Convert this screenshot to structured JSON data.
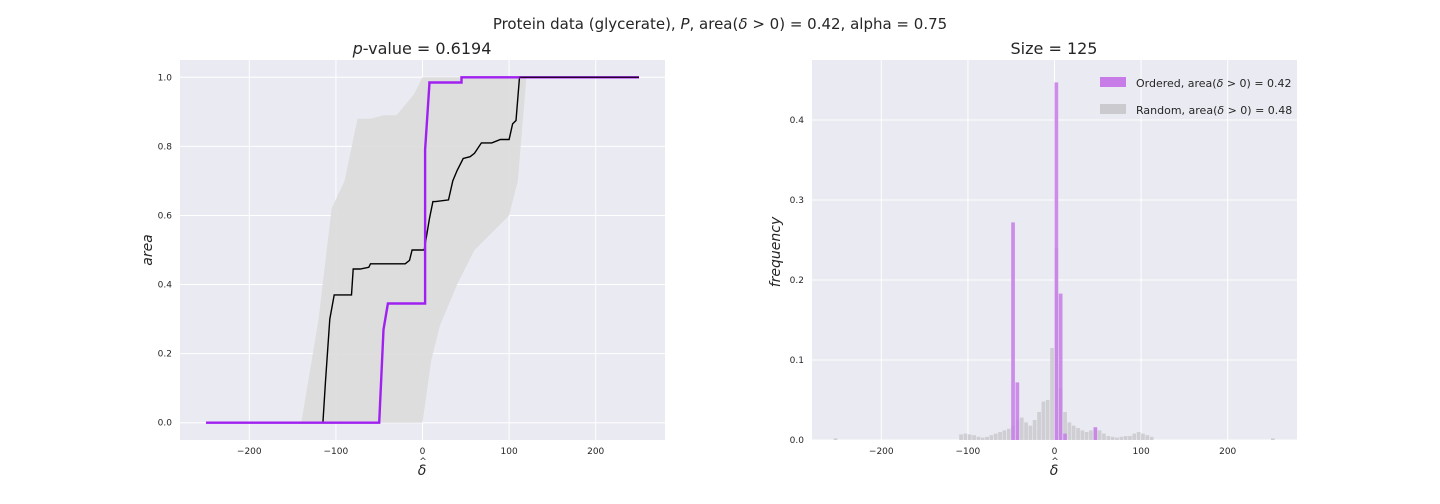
{
  "figure": {
    "suptitle_prefix": "Protein data (glycerate), ",
    "suptitle_P": "P",
    "suptitle_mid": ", area(",
    "suptitle_delta": "δ",
    "suptitle_hat": "^",
    "suptitle_suffix": " > 0) = 0.42, alpha = 0.75"
  },
  "colors": {
    "background": "#eaeaf2",
    "grid": "#ffffff",
    "ordered": "#a020f0",
    "random_band": "#dcdcdc",
    "random_median": "#000000",
    "ordered_hist": "#c77ce8",
    "random_hist": "#cbcbcf"
  },
  "chart_data": [
    {
      "type": "line",
      "title_italic": "p",
      "title_rest": "-value = 0.6194",
      "xlabel": "δ",
      "xlabel_hat": "^",
      "ylabel": "area",
      "xlim": [
        -280,
        280
      ],
      "ylim": [
        -0.05,
        1.05
      ],
      "xticks": [
        -200,
        -100,
        0,
        100,
        200
      ],
      "xtick_labels": [
        "−200",
        "−100",
        "0",
        "100",
        "200"
      ],
      "yticks": [
        0.0,
        0.2,
        0.4,
        0.6,
        0.8,
        1.0
      ],
      "ytick_labels": [
        "0.0",
        "0.2",
        "0.4",
        "0.6",
        "0.8",
        "1.0"
      ],
      "grid": true,
      "series": [
        {
          "role": "ordered",
          "x": [
            -250,
            -50,
            -45,
            -40,
            -10,
            3,
            3,
            8,
            8,
            45,
            45,
            250
          ],
          "y": [
            0,
            0,
            0.27,
            0.345,
            0.345,
            0.345,
            0.79,
            0.98,
            0.985,
            0.985,
            1.0,
            1.0
          ]
        },
        {
          "role": "median",
          "x": [
            -250,
            -115,
            -112,
            -107,
            -102,
            -97,
            -82,
            -80,
            -72,
            -62,
            -60,
            -50,
            -40,
            -20,
            -15,
            -12,
            -5,
            -2,
            2,
            5,
            8,
            12,
            15,
            30,
            35,
            40,
            47,
            55,
            60,
            68,
            80,
            90,
            100,
            104,
            108,
            112,
            250
          ],
          "y": [
            0,
            0,
            0.12,
            0.3,
            0.37,
            0.37,
            0.37,
            0.445,
            0.445,
            0.45,
            0.46,
            0.46,
            0.46,
            0.46,
            0.47,
            0.5,
            0.5,
            0.5,
            0.5,
            0.545,
            0.59,
            0.64,
            0.64,
            0.645,
            0.7,
            0.73,
            0.765,
            0.77,
            0.78,
            0.81,
            0.81,
            0.82,
            0.82,
            0.865,
            0.875,
            1.0,
            1.0
          ]
        },
        {
          "role": "band",
          "x": [
            -250,
            -140,
            -120,
            -105,
            -90,
            -75,
            -60,
            -45,
            -30,
            -20,
            -10,
            0,
            10,
            20,
            40,
            60,
            80,
            100,
            110,
            120,
            250
          ],
          "upper": [
            0,
            0,
            0.3,
            0.62,
            0.7,
            0.88,
            0.88,
            0.89,
            0.89,
            0.92,
            0.95,
            1.0,
            1.0,
            1.0,
            1.0,
            1.0,
            1.0,
            1.0,
            1.0,
            1.0,
            1.0
          ],
          "lower": [
            0,
            0,
            0,
            0,
            0,
            0,
            0,
            0,
            0,
            0,
            0,
            0,
            0.18,
            0.28,
            0.4,
            0.5,
            0.55,
            0.6,
            0.7,
            1.0,
            1.0
          ]
        }
      ]
    },
    {
      "type": "bar",
      "title": "Size = 125",
      "xlabel": "δ",
      "xlabel_hat": "^",
      "ylabel": "frequency",
      "xlim": [
        -280,
        280
      ],
      "ylim": [
        0,
        0.475
      ],
      "xticks": [
        -200,
        -100,
        0,
        100,
        200
      ],
      "xtick_labels": [
        "−200",
        "−100",
        "0",
        "100",
        "200"
      ],
      "yticks": [
        0.0,
        0.1,
        0.2,
        0.3,
        0.4
      ],
      "ytick_labels": [
        "0.0",
        "0.1",
        "0.2",
        "0.3",
        "0.4"
      ],
      "grid": true,
      "legend_placement": "top-right",
      "bin_width": 5,
      "series": [
        {
          "role": "random",
          "name_prefix": "Random, area(",
          "name_delta": "δ",
          "name_suffix": " > 0) = 0.48",
          "bins": [
            [
              -255,
              0.002
            ],
            [
              -110,
              0.007
            ],
            [
              -105,
              0.008
            ],
            [
              -100,
              0.007
            ],
            [
              -95,
              0.006
            ],
            [
              -90,
              0.004
            ],
            [
              -85,
              0.003
            ],
            [
              -80,
              0.004
            ],
            [
              -75,
              0.006
            ],
            [
              -70,
              0.008
            ],
            [
              -65,
              0.01
            ],
            [
              -60,
              0.012
            ],
            [
              -55,
              0.014
            ],
            [
              -50,
              0.018
            ],
            [
              -45,
              0.025
            ],
            [
              -40,
              0.028
            ],
            [
              -35,
              0.022
            ],
            [
              -30,
              0.018
            ],
            [
              -25,
              0.025
            ],
            [
              -20,
              0.035
            ],
            [
              -15,
              0.048
            ],
            [
              -10,
              0.05
            ],
            [
              -5,
              0.115
            ],
            [
              0,
              0.24
            ],
            [
              5,
              0.065
            ],
            [
              10,
              0.035
            ],
            [
              15,
              0.022
            ],
            [
              20,
              0.018
            ],
            [
              25,
              0.015
            ],
            [
              30,
              0.012
            ],
            [
              35,
              0.01
            ],
            [
              40,
              0.012
            ],
            [
              45,
              0.014
            ],
            [
              50,
              0.012
            ],
            [
              55,
              0.008
            ],
            [
              60,
              0.005
            ],
            [
              65,
              0.004
            ],
            [
              70,
              0.003
            ],
            [
              75,
              0.004
            ],
            [
              80,
              0.005
            ],
            [
              85,
              0.005
            ],
            [
              90,
              0.008
            ],
            [
              95,
              0.01
            ],
            [
              100,
              0.008
            ],
            [
              105,
              0.006
            ],
            [
              110,
              0.004
            ],
            [
              250,
              0.002
            ]
          ]
        },
        {
          "role": "ordered",
          "name_prefix": "Ordered, area(",
          "name_delta": "δ",
          "name_suffix": " > 0) = 0.42",
          "bins": [
            [
              -50,
              0.272
            ],
            [
              -45,
              0.072
            ],
            [
              0,
              0.447
            ],
            [
              5,
              0.183
            ],
            [
              10,
              0.008
            ],
            [
              45,
              0.016
            ]
          ]
        }
      ]
    }
  ]
}
